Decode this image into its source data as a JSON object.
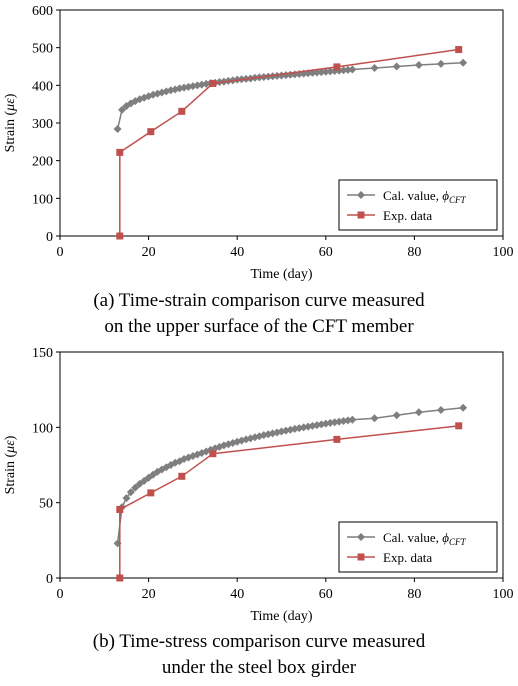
{
  "chart_data": [
    {
      "type": "line",
      "xlabel": "Time (day)",
      "ylabel_prefix": "Strain (",
      "ylabel_symbol": "με",
      "ylabel_suffix": ")",
      "xlim": [
        0,
        100
      ],
      "ylim": [
        0,
        600
      ],
      "xticks": [
        0,
        20,
        40,
        60,
        80,
        100
      ],
      "yticks": [
        0,
        100,
        200,
        300,
        400,
        500,
        600
      ],
      "grid": false,
      "legend_position": "bottom-right",
      "series": [
        {
          "name": "Cal. value, ",
          "name_symbol": "ϕ",
          "name_subscript": "CFT",
          "color": "#7f7f7f",
          "marker": "diamond",
          "x": [
            13,
            14,
            15,
            16,
            17,
            18,
            19,
            20,
            21,
            22,
            23,
            24,
            25,
            26,
            27,
            28,
            29,
            30,
            31,
            32,
            33,
            34,
            35,
            36,
            37,
            38,
            39,
            40,
            41,
            42,
            43,
            44,
            45,
            46,
            47,
            48,
            49,
            50,
            51,
            52,
            53,
            54,
            55,
            56,
            57,
            58,
            59,
            60,
            61,
            62,
            63,
            64,
            65,
            66,
            71,
            76,
            81,
            86,
            91
          ],
          "y": [
            284,
            335,
            345,
            352,
            358,
            363,
            367,
            371,
            375,
            378,
            381,
            384,
            387,
            389,
            392,
            394,
            396,
            398,
            400,
            402,
            404,
            406,
            407,
            409,
            410,
            412,
            413,
            415,
            416,
            417,
            418,
            420,
            421,
            422,
            423,
            424,
            425,
            426,
            427,
            428,
            429,
            430,
            431,
            432,
            433,
            434,
            435,
            436,
            437,
            438,
            439,
            440,
            441,
            442,
            446,
            450,
            454,
            457,
            460
          ]
        },
        {
          "name": "Exp. data",
          "color": "#c0504d",
          "marker": "square",
          "x": [
            13.5,
            13.5,
            20.5,
            27.5,
            34.5,
            62.5,
            90
          ],
          "y": [
            0,
            222,
            277,
            331,
            405,
            449,
            495
          ]
        }
      ]
    },
    {
      "type": "line",
      "xlabel": "Time (day)",
      "ylabel_prefix": "Strain (",
      "ylabel_symbol": "με",
      "ylabel_suffix": ")",
      "xlim": [
        0,
        100
      ],
      "ylim": [
        0,
        150
      ],
      "xticks": [
        0,
        20,
        40,
        60,
        80,
        100
      ],
      "yticks": [
        0,
        50,
        100,
        150
      ],
      "grid": false,
      "legend_position": "bottom-right",
      "series": [
        {
          "name": "Cal. value, ",
          "name_symbol": "ϕ",
          "name_subscript": "CFT",
          "color": "#7f7f7f",
          "marker": "diamond",
          "x": [
            13,
            14,
            15,
            16,
            17,
            18,
            19,
            20,
            21,
            22,
            23,
            24,
            25,
            26,
            27,
            28,
            29,
            30,
            31,
            32,
            33,
            34,
            35,
            36,
            37,
            38,
            39,
            40,
            41,
            42,
            43,
            44,
            45,
            46,
            47,
            48,
            49,
            50,
            51,
            52,
            53,
            54,
            55,
            56,
            57,
            58,
            59,
            60,
            61,
            62,
            63,
            64,
            65,
            66,
            71,
            76,
            81,
            86,
            91
          ],
          "y": [
            23,
            47,
            53,
            57,
            60,
            62.5,
            64.5,
            66.5,
            68.5,
            70.5,
            72,
            73.5,
            75,
            76.5,
            77.5,
            79,
            80,
            81,
            82,
            83,
            84,
            85,
            86,
            87,
            88,
            88.8,
            89.6,
            90.4,
            91.2,
            92,
            92.7,
            93.4,
            94.1,
            94.8,
            95.4,
            96,
            96.6,
            97.2,
            97.8,
            98.4,
            99,
            99.5,
            100,
            100.5,
            101,
            101.5,
            102,
            102.5,
            103,
            103.4,
            103.8,
            104.2,
            104.6,
            105,
            106,
            108,
            110,
            111.5,
            113
          ]
        },
        {
          "name": "Exp. data",
          "color": "#c0504d",
          "marker": "square",
          "x": [
            13.5,
            13.5,
            20.5,
            27.5,
            34.5,
            62.5,
            90
          ],
          "y": [
            0,
            45.5,
            56.5,
            67.5,
            82.5,
            92,
            101
          ]
        }
      ]
    }
  ],
  "captions": [
    {
      "line1": "(a) Time-strain comparison curve measured",
      "line2": "on the upper surface of the CFT member"
    },
    {
      "line1": "(b) Time-stress comparison curve measured",
      "line2": "under the steel box girder"
    }
  ]
}
